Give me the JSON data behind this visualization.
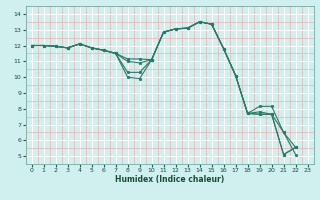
{
  "xlabel": "Humidex (Indice chaleur)",
  "xlim": [
    -0.5,
    23.5
  ],
  "ylim": [
    4.5,
    14.5
  ],
  "xticks": [
    0,
    1,
    2,
    3,
    4,
    5,
    6,
    7,
    8,
    9,
    10,
    11,
    12,
    13,
    14,
    15,
    16,
    17,
    18,
    19,
    20,
    21,
    22,
    23
  ],
  "yticks": [
    5,
    6,
    7,
    8,
    9,
    10,
    11,
    12,
    13,
    14
  ],
  "bg_color": "#cff0ee",
  "line_color": "#2a7a6a",
  "lines": [
    [
      [
        0,
        12
      ],
      [
        1,
        12
      ],
      [
        2,
        11.95
      ],
      [
        3,
        11.85
      ],
      [
        4,
        12.1
      ],
      [
        5,
        11.85
      ],
      [
        6,
        11.7
      ],
      [
        7,
        11.5
      ],
      [
        8,
        11.15
      ],
      [
        9,
        11.15
      ],
      [
        10,
        11.1
      ],
      [
        11,
        12.85
      ],
      [
        12,
        13.05
      ],
      [
        13,
        13.1
      ],
      [
        14,
        13.5
      ],
      [
        15,
        13.35
      ],
      [
        16,
        11.8
      ],
      [
        17,
        10.1
      ],
      [
        18,
        7.7
      ],
      [
        19,
        8.15
      ],
      [
        20,
        8.15
      ],
      [
        21,
        6.5
      ],
      [
        22,
        5.1
      ]
    ],
    [
      [
        0,
        12
      ],
      [
        1,
        12
      ],
      [
        2,
        11.95
      ],
      [
        3,
        11.85
      ],
      [
        4,
        12.1
      ],
      [
        5,
        11.85
      ],
      [
        6,
        11.7
      ],
      [
        7,
        11.5
      ],
      [
        8,
        11.0
      ],
      [
        9,
        10.9
      ],
      [
        10,
        11.1
      ],
      [
        11,
        12.85
      ],
      [
        12,
        13.05
      ],
      [
        13,
        13.1
      ],
      [
        14,
        13.5
      ],
      [
        15,
        13.35
      ],
      [
        16,
        11.8
      ],
      [
        17,
        10.1
      ],
      [
        18,
        7.7
      ],
      [
        19,
        7.8
      ],
      [
        20,
        7.65
      ],
      [
        21,
        6.5
      ],
      [
        22,
        5.55
      ]
    ],
    [
      [
        0,
        12
      ],
      [
        1,
        12
      ],
      [
        2,
        11.95
      ],
      [
        3,
        11.85
      ],
      [
        4,
        12.1
      ],
      [
        5,
        11.85
      ],
      [
        6,
        11.7
      ],
      [
        7,
        11.5
      ],
      [
        8,
        10.3
      ],
      [
        9,
        10.3
      ],
      [
        10,
        11.1
      ],
      [
        11,
        12.85
      ],
      [
        12,
        13.05
      ],
      [
        13,
        13.1
      ],
      [
        14,
        13.5
      ],
      [
        15,
        13.35
      ],
      [
        16,
        11.8
      ],
      [
        17,
        10.1
      ],
      [
        18,
        7.7
      ],
      [
        19,
        7.65
      ],
      [
        20,
        7.65
      ],
      [
        21,
        5.1
      ],
      [
        22,
        5.55
      ]
    ],
    [
      [
        0,
        12
      ],
      [
        1,
        12
      ],
      [
        2,
        11.95
      ],
      [
        3,
        11.85
      ],
      [
        4,
        12.1
      ],
      [
        5,
        11.85
      ],
      [
        6,
        11.7
      ],
      [
        7,
        11.5
      ],
      [
        8,
        10.0
      ],
      [
        9,
        9.9
      ],
      [
        10,
        11.1
      ],
      [
        11,
        12.85
      ],
      [
        12,
        13.05
      ],
      [
        13,
        13.1
      ],
      [
        14,
        13.5
      ],
      [
        15,
        13.35
      ],
      [
        16,
        11.8
      ],
      [
        17,
        10.1
      ],
      [
        18,
        7.7
      ],
      [
        19,
        7.65
      ],
      [
        20,
        7.65
      ],
      [
        21,
        5.1
      ],
      [
        22,
        5.55
      ]
    ]
  ]
}
